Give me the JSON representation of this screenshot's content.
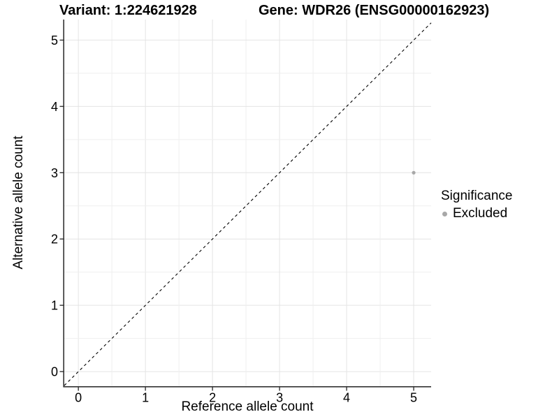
{
  "chart_data": {
    "type": "scatter",
    "titles": {
      "left": "Variant: 1:224621928",
      "right": "Gene: WDR26 (ENSG00000162923)"
    },
    "xlabel": "Reference allele count",
    "ylabel": "Alternative allele count",
    "xlim": [
      -0.21,
      5.26
    ],
    "ylim": [
      -0.22,
      5.31
    ],
    "xticks": [
      0,
      1,
      2,
      3,
      4,
      5
    ],
    "yticks": [
      0,
      1,
      2,
      3,
      4,
      5
    ],
    "grid": "on",
    "minor_grid_step": 0.5,
    "series": [
      {
        "name": "Excluded",
        "color": "#a8a8a8",
        "points": [
          {
            "x": 5,
            "y": 3
          }
        ]
      }
    ],
    "reference_line": {
      "equation": "y = x",
      "style": "dashed",
      "color": "#000000"
    },
    "legend": {
      "title": "Significance",
      "position": "right",
      "entries": [
        {
          "label": "Excluded",
          "color": "#a8a8a8"
        }
      ]
    },
    "colors": {
      "background": "#ffffff",
      "grid_major": "#e4e4e4",
      "grid_minor": "#efefef",
      "axis_line": "#333333",
      "text": "#000000"
    }
  }
}
